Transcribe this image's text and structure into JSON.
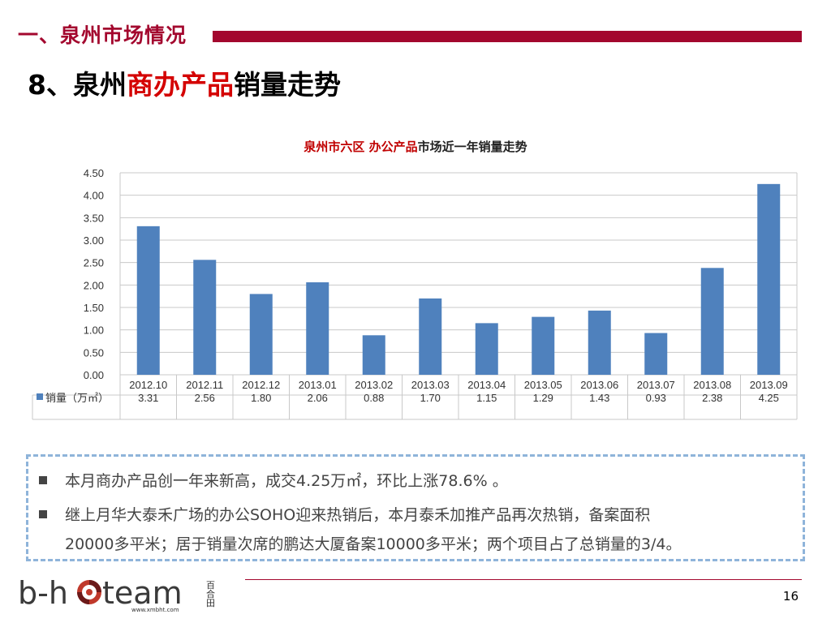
{
  "header": {
    "section_title": "一、泉州市场情况",
    "slide_title_prefix": "8、泉州",
    "slide_title_highlight": "商办产品",
    "slide_title_suffix": "销量走势"
  },
  "chart_data": {
    "type": "bar",
    "title_highlight": "泉州市六区 办公产品",
    "title_rest": "市场近一年销量走势",
    "categories": [
      "2012.10",
      "2012.11",
      "2012.12",
      "2013.01",
      "2013.02",
      "2013.03",
      "2013.04",
      "2013.05",
      "2013.06",
      "2013.07",
      "2013.08",
      "2013.09"
    ],
    "series": [
      {
        "name": "销量（万㎡）",
        "values": [
          3.31,
          2.56,
          1.8,
          2.06,
          0.88,
          1.7,
          1.15,
          1.29,
          1.43,
          0.93,
          2.38,
          4.25
        ],
        "color": "#4f81bd"
      }
    ],
    "value_labels": [
      "3.31",
      "2.56",
      "1.80",
      "2.06",
      "0.88",
      "1.70",
      "1.15",
      "1.29",
      "1.43",
      "0.93",
      "2.38",
      "4.25"
    ],
    "yticks": [
      "0.00",
      "0.50",
      "1.00",
      "1.50",
      "2.00",
      "2.50",
      "3.00",
      "3.50",
      "4.00",
      "4.50"
    ],
    "ylim": [
      0,
      4.5
    ],
    "grid": true,
    "legend": "data-table"
  },
  "notes": {
    "bullet1": "本月商办产品创一年来新高，成交4.25万㎡，环比上涨78.6% 。",
    "bullet2_line1": "继上月华大泰禾广场的办公SOHO迎来热销后，本月泰禾加推产品再次热销，备案面积",
    "bullet2_line2": "20000多平米；居于销量次席的鹏达大厦备案10000多平米；两个项目占了总销量的3/4。"
  },
  "footer": {
    "page_number": "16",
    "logo_text": "b-h",
    "logo_text2": "team",
    "logo_cn": "百合田",
    "logo_url": "www.xmbht.com"
  },
  "colors": {
    "brand": "#a3072e",
    "bar": "#4f81bd",
    "note_border": "#8fb4da"
  }
}
